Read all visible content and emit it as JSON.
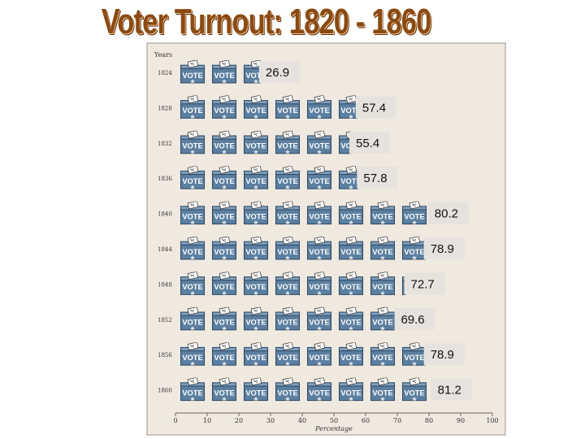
{
  "title": "Voter Turnout:  1820 - 1860",
  "chart_data": {
    "type": "bar",
    "orientation": "horizontal",
    "ylabel": "Years",
    "xlabel": "Percentage",
    "xlim": [
      0,
      100
    ],
    "x_ticks": [
      0,
      10,
      20,
      30,
      40,
      50,
      60,
      70,
      80,
      90,
      100
    ],
    "categories": [
      "1824",
      "1828",
      "1832",
      "1836",
      "1840",
      "1844",
      "1848",
      "1852",
      "1856",
      "1860"
    ],
    "values": [
      26.9,
      57.4,
      55.4,
      57.8,
      80.2,
      78.9,
      72.7,
      69.6,
      78.9,
      81.2
    ],
    "value_labels": [
      "26.9",
      "57.4",
      "55.4",
      "57.8",
      "80.2",
      "78.9",
      "72.7",
      "69.6",
      "78.9",
      "81.2"
    ],
    "icon_label": "VOTE",
    "icon": "ballot-box-icon",
    "grid": false,
    "colors": {
      "panel": "#f0e9df",
      "ballot_box": "#5b7fa0",
      "ballot_box_dark": "#2f4a66",
      "value_box": "#e6e3de"
    }
  }
}
